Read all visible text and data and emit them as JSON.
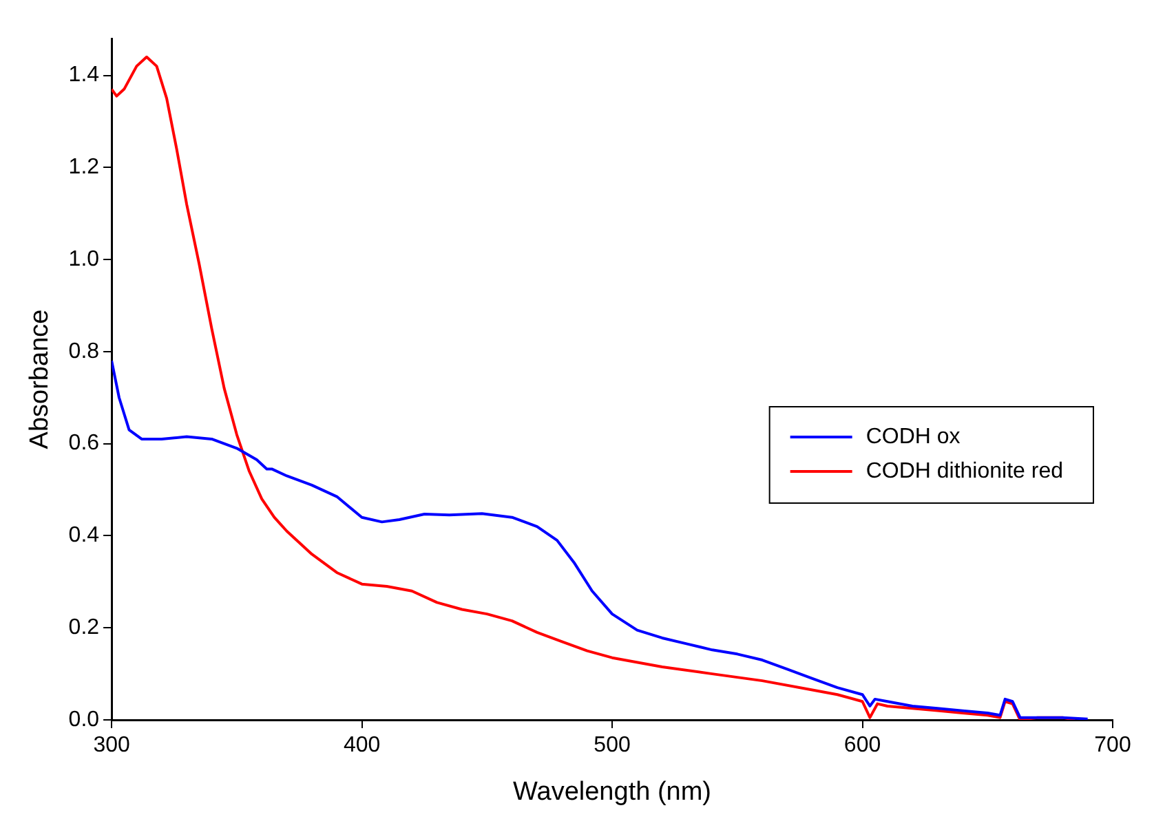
{
  "chart_data": {
    "type": "line",
    "xlabel": "Wavelength (nm)",
    "ylabel": "Absorbance",
    "xlim": [
      300,
      700
    ],
    "xticks": [
      300,
      400,
      500,
      600,
      700
    ],
    "ylim": [
      0,
      1.48
    ],
    "yticks": [
      {
        "value": 0,
        "label": "0.0"
      },
      0.2,
      0.4,
      0.6,
      0.8,
      {
        "value": 1,
        "label": "1.0"
      },
      1.2,
      1.4
    ],
    "grid": false,
    "legend": "right",
    "marker": "none",
    "line_style": "solid",
    "series": [
      {
        "name": "CODH ox",
        "color": "#0000ff",
        "x": [
          300,
          303,
          307,
          312,
          320,
          330,
          340,
          350,
          358,
          362,
          364,
          370,
          380,
          390,
          400,
          408,
          415,
          425,
          435,
          448,
          460,
          470,
          478,
          485,
          492,
          500,
          510,
          520,
          530,
          540,
          550,
          560,
          570,
          580,
          590,
          600,
          603,
          605,
          610,
          620,
          630,
          640,
          650,
          655,
          657,
          660,
          663,
          670,
          680,
          690
        ],
        "values": [
          0.78,
          0.7,
          0.63,
          0.61,
          0.61,
          0.615,
          0.61,
          0.59,
          0.565,
          0.545,
          0.545,
          0.53,
          0.51,
          0.485,
          0.44,
          0.43,
          0.435,
          0.447,
          0.445,
          0.448,
          0.44,
          0.42,
          0.39,
          0.34,
          0.28,
          0.23,
          0.195,
          0.178,
          0.165,
          0.152,
          0.143,
          0.13,
          0.11,
          0.09,
          0.07,
          0.055,
          0.03,
          0.045,
          0.04,
          0.03,
          0.025,
          0.02,
          0.015,
          0.01,
          0.045,
          0.04,
          0.005,
          0.005,
          0.005,
          0.002
        ]
      },
      {
        "name": "CODH dithionite red",
        "color": "#ff0000",
        "x": [
          300,
          302,
          305,
          310,
          314,
          318,
          322,
          326,
          330,
          335,
          340,
          345,
          350,
          355,
          360,
          365,
          370,
          380,
          390,
          400,
          410,
          420,
          430,
          440,
          450,
          460,
          470,
          480,
          490,
          500,
          520,
          540,
          560,
          580,
          590,
          600,
          603,
          606,
          610,
          620,
          630,
          640,
          650,
          655,
          657,
          660,
          663,
          670,
          680,
          685
        ],
        "values": [
          1.37,
          1.355,
          1.37,
          1.42,
          1.44,
          1.42,
          1.35,
          1.24,
          1.12,
          0.99,
          0.85,
          0.72,
          0.62,
          0.54,
          0.48,
          0.44,
          0.41,
          0.36,
          0.32,
          0.295,
          0.29,
          0.28,
          0.255,
          0.24,
          0.23,
          0.215,
          0.19,
          0.17,
          0.15,
          0.135,
          0.115,
          0.1,
          0.085,
          0.065,
          0.055,
          0.04,
          0.005,
          0.035,
          0.03,
          0.025,
          0.02,
          0.015,
          0.01,
          0.005,
          0.04,
          0.035,
          0.0,
          0.005,
          0.005,
          0.0
        ]
      }
    ]
  }
}
